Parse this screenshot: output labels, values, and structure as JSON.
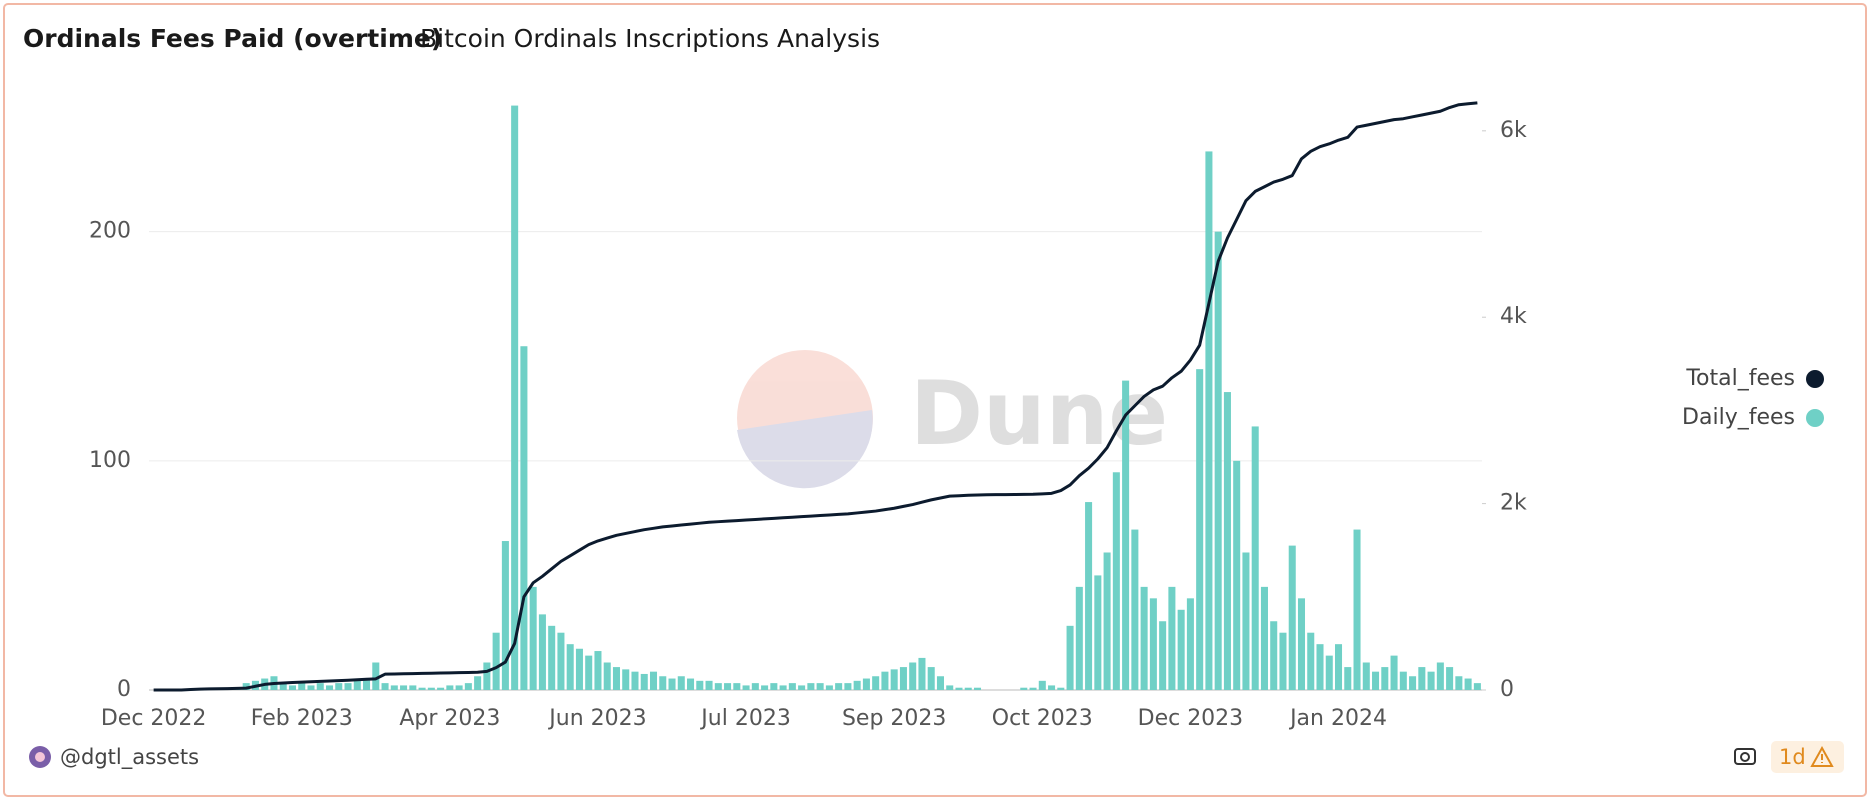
{
  "chart_data": {
    "type": "combo",
    "title": "Ordinals Fees Paid (overtime)",
    "subtitle": "Bitcoin Ordinals Inscriptions Analysis",
    "categories": [
      "Dec 2022",
      null,
      null,
      null,
      null,
      null,
      null,
      null,
      null,
      null,
      null,
      null,
      null,
      null,
      null,
      null,
      "Feb 2023",
      null,
      null,
      null,
      null,
      null,
      null,
      null,
      null,
      null,
      null,
      null,
      null,
      null,
      null,
      null,
      "Apr 2023",
      null,
      null,
      null,
      null,
      null,
      null,
      null,
      null,
      null,
      null,
      null,
      null,
      null,
      null,
      null,
      "Jun 2023",
      null,
      null,
      null,
      null,
      null,
      null,
      null,
      null,
      null,
      null,
      null,
      null,
      null,
      null,
      null,
      "Jul 2023",
      null,
      null,
      null,
      null,
      null,
      null,
      null,
      null,
      null,
      null,
      null,
      null,
      null,
      null,
      null,
      "Sep 2023",
      null,
      null,
      null,
      null,
      null,
      null,
      null,
      null,
      null,
      null,
      null,
      null,
      null,
      null,
      null,
      "Oct 2023",
      null,
      null,
      null,
      null,
      null,
      null,
      null,
      null,
      null,
      null,
      null,
      null,
      null,
      null,
      null,
      "Dec 2023",
      null,
      null,
      null,
      null,
      null,
      null,
      null,
      null,
      null,
      null,
      null,
      null,
      null,
      null,
      null,
      "Jan 2024",
      null,
      null,
      null,
      null,
      null,
      null,
      null,
      null,
      null,
      null,
      null,
      null,
      null,
      null,
      null
    ],
    "series": [
      {
        "name": "Total_fees",
        "type": "line",
        "axis": "y2",
        "color": "#0c1b2e",
        "values": [
          0,
          0,
          0,
          0,
          5,
          10,
          12,
          14,
          15,
          18,
          20,
          40,
          60,
          70,
          75,
          80,
          84,
          88,
          92,
          96,
          100,
          105,
          110,
          115,
          120,
          170,
          172,
          174,
          176,
          178,
          180,
          182,
          184,
          186,
          188,
          190,
          200,
          240,
          300,
          500,
          1000,
          1150,
          1220,
          1300,
          1380,
          1440,
          1500,
          1560,
          1600,
          1630,
          1660,
          1680,
          1700,
          1720,
          1735,
          1750,
          1760,
          1770,
          1780,
          1790,
          1800,
          1806,
          1812,
          1818,
          1824,
          1830,
          1836,
          1842,
          1848,
          1854,
          1860,
          1866,
          1872,
          1878,
          1884,
          1890,
          1900,
          1910,
          1920,
          1935,
          1950,
          1970,
          1990,
          2015,
          2040,
          2060,
          2080,
          2085,
          2090,
          2093,
          2095,
          2096,
          2097,
          2098,
          2099,
          2100,
          2105,
          2110,
          2140,
          2200,
          2300,
          2380,
          2480,
          2600,
          2780,
          2950,
          3050,
          3150,
          3220,
          3260,
          3350,
          3420,
          3540,
          3700,
          4150,
          4600,
          4850,
          5050,
          5250,
          5350,
          5400,
          5450,
          5480,
          5520,
          5700,
          5780,
          5830,
          5860,
          5900,
          5930,
          6040,
          6060,
          6080,
          6100,
          6120,
          6130,
          6150,
          6170,
          6190,
          6210,
          6250,
          6280,
          6290,
          6300
        ]
      },
      {
        "name": "Daily_fees",
        "type": "bar",
        "color": "#6fd0c6",
        "values": [
          0,
          0,
          0,
          0,
          0,
          0,
          0,
          0,
          0,
          1,
          3,
          4,
          5,
          6,
          3,
          2,
          3,
          2,
          3,
          2,
          3,
          3,
          4,
          5,
          12,
          3,
          2,
          2,
          2,
          1,
          1,
          1,
          2,
          2,
          3,
          6,
          12,
          25,
          65,
          255,
          150,
          45,
          33,
          28,
          25,
          20,
          18,
          15,
          17,
          12,
          10,
          9,
          8,
          7,
          8,
          6,
          5,
          6,
          5,
          4,
          4,
          3,
          3,
          3,
          2,
          3,
          2,
          3,
          2,
          3,
          2,
          3,
          3,
          2,
          3,
          3,
          4,
          5,
          6,
          8,
          9,
          10,
          12,
          14,
          10,
          6,
          2,
          1,
          1,
          1,
          0,
          0,
          0,
          0,
          1,
          1,
          4,
          2,
          1,
          28,
          45,
          82,
          50,
          60,
          95,
          135,
          70,
          45,
          40,
          30,
          45,
          35,
          40,
          140,
          235,
          200,
          130,
          100,
          60,
          115,
          45,
          30,
          25,
          63,
          40,
          25,
          20,
          15,
          20,
          10,
          70,
          12,
          8,
          10,
          15,
          8,
          6,
          10,
          8,
          12,
          10,
          6,
          5,
          3
        ]
      }
    ],
    "ylim": [
      0,
      257
    ],
    "yticks": [
      0,
      100,
      200
    ],
    "y2lim": [
      0,
      6320
    ],
    "y2ticks": [
      0,
      {
        "value": 2000,
        "label": "2k"
      },
      {
        "value": 4000,
        "label": "4k"
      },
      {
        "value": 6000,
        "label": "6k"
      }
    ],
    "grid": true,
    "legend": "right"
  },
  "watermark": "Dune",
  "footer": {
    "author": "@dgtl_assets",
    "badge": "1d"
  }
}
